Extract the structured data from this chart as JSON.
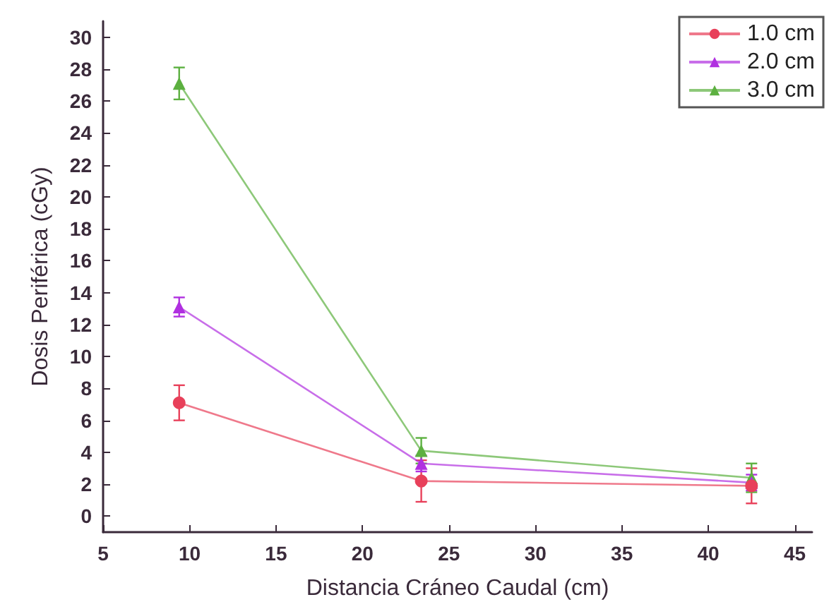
{
  "chart_data": {
    "type": "line",
    "xlabel": "Distancia Cráneo Caudal (cm)",
    "ylabel": "Dosis Periférica (cGy)",
    "xlim": [
      5,
      46
    ],
    "xticks": [
      5,
      10,
      15,
      20,
      25,
      30,
      35,
      40,
      45
    ],
    "ylim": [
      -1,
      31
    ],
    "yticks": [
      0,
      2,
      4,
      6,
      8,
      10,
      12,
      14,
      16,
      18,
      20,
      22,
      24,
      26,
      28,
      30
    ],
    "grid": false,
    "legend": "top right",
    "series": [
      {
        "name": "1.0 cm",
        "color": "#e8405a",
        "marker": "circle",
        "x": [
          9.4,
          23.4,
          42.5
        ],
        "values": [
          7.1,
          2.2,
          1.9
        ],
        "errors": [
          1.1,
          1.3,
          1.1
        ]
      },
      {
        "name": "2.0 cm",
        "color": "#b030e0",
        "marker": "triangle",
        "x": [
          9.4,
          23.4,
          42.5
        ],
        "values": [
          13.1,
          3.3,
          2.1
        ],
        "errors": [
          0.6,
          0.5,
          0.5
        ]
      },
      {
        "name": "3.0 cm",
        "color": "#5cb040",
        "marker": "triangle",
        "x": [
          9.4,
          23.4,
          42.5
        ],
        "values": [
          27.1,
          4.1,
          2.4
        ],
        "errors": [
          1.0,
          0.8,
          0.9
        ]
      }
    ]
  }
}
